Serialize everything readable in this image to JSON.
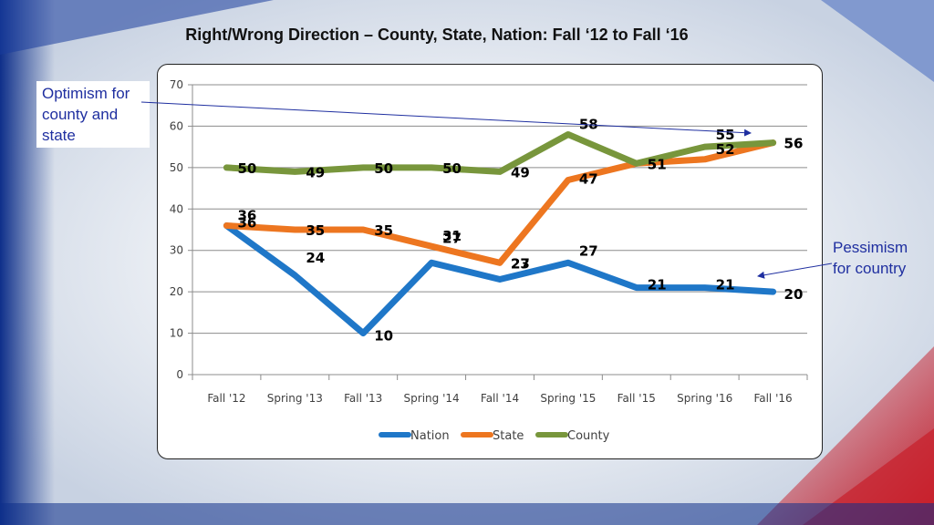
{
  "slide": {
    "title": "Right/Wrong Direction – County, State, Nation: Fall ‘12 to Fall ‘16",
    "callout_optimism": "Optimism for county and state",
    "callout_pessimism": "Pessimism for country"
  },
  "colors": {
    "nation": "#1f77c8",
    "state": "#ed7620",
    "county": "#78963c",
    "callout": "#1f2fa0"
  },
  "chart_data": {
    "type": "line",
    "categories": [
      "Fall '12",
      "Spring '13",
      "Fall '13",
      "Spring '14",
      "Fall '14",
      "Spring '15",
      "Fall '15",
      "Spring '16",
      "Fall '16"
    ],
    "series": [
      {
        "name": "Nation",
        "values": [
          36,
          24,
          10,
          27,
          23,
          27,
          21,
          21,
          20
        ]
      },
      {
        "name": "State",
        "values": [
          36,
          35,
          35,
          31,
          27,
          47,
          51,
          52,
          56
        ]
      },
      {
        "name": "County",
        "values": [
          50,
          49,
          50,
          50,
          49,
          58,
          51,
          55,
          56
        ]
      }
    ],
    "ylim": [
      0,
      70
    ],
    "yticks": [
      0,
      10,
      20,
      30,
      40,
      50,
      60,
      70
    ],
    "grid": true,
    "legend": "bottom",
    "data_labels": true
  }
}
